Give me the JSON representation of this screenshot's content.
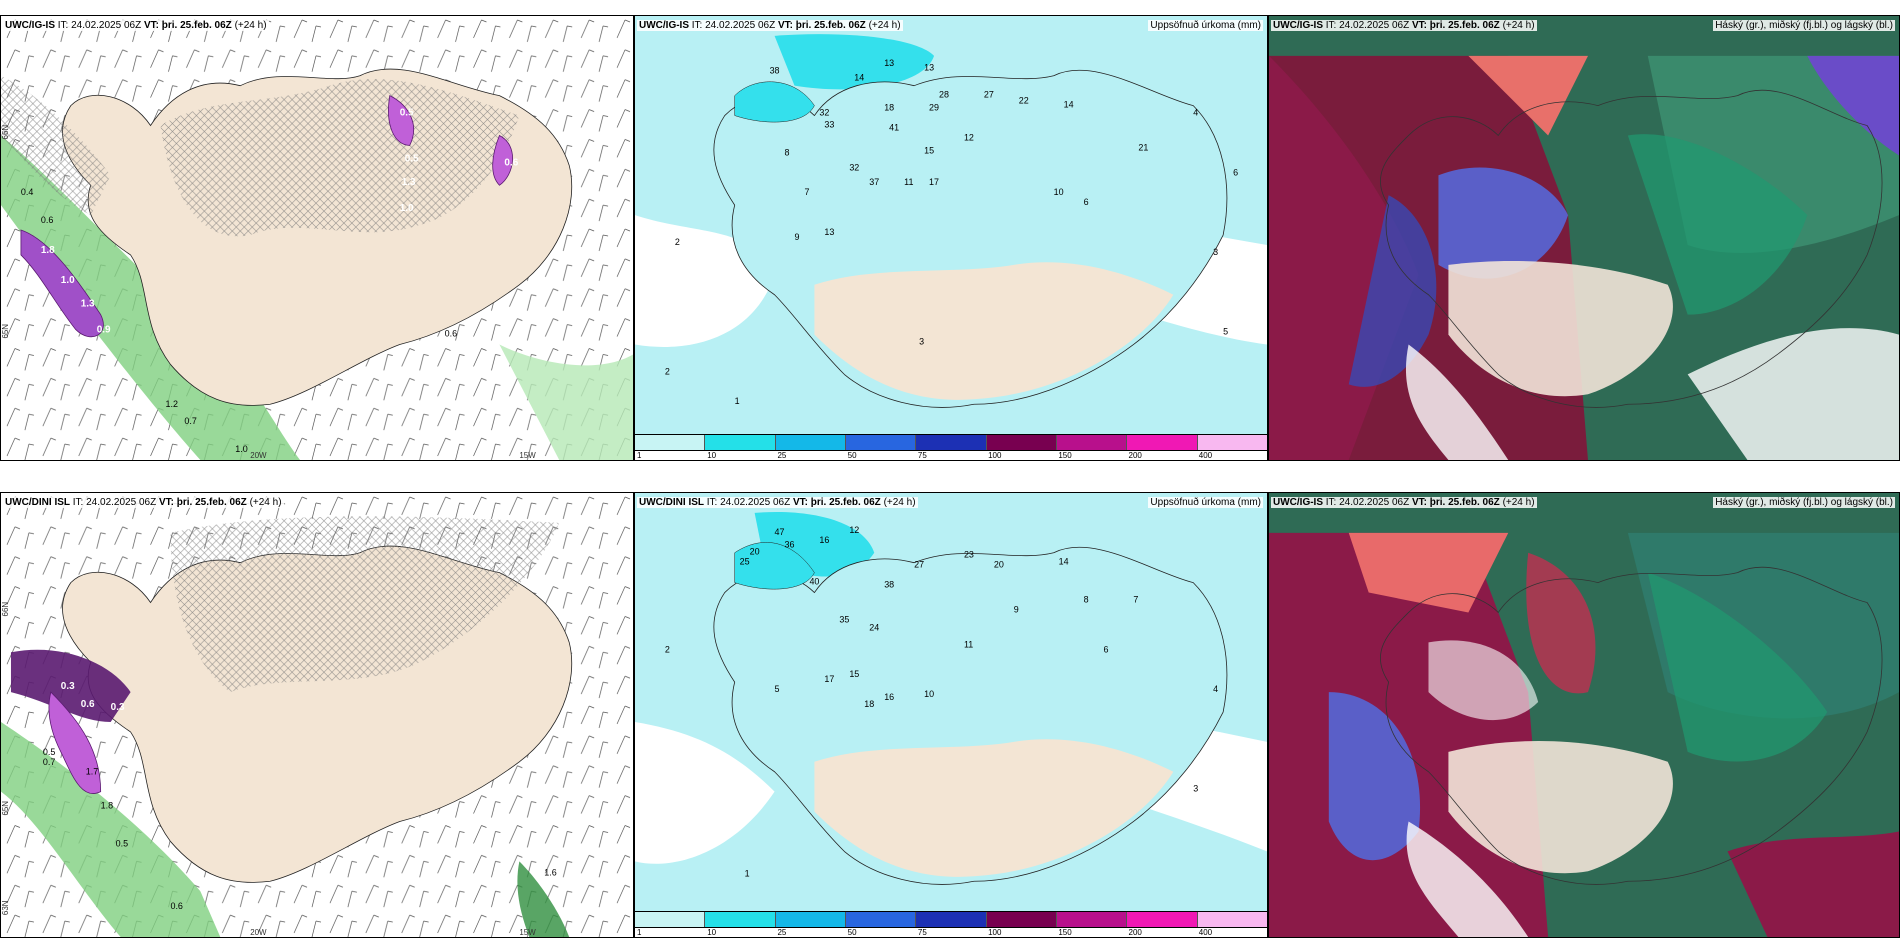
{
  "rows": [
    {
      "model": "UWC/IG-IS",
      "it_text": "IT: 24.02.2025 06Z",
      "vt_label": "VT: þri. 25.feb. 06Z",
      "lead": "(+24 h)",
      "map_labels": [
        "0.4",
        "0.6",
        "1.8",
        "1.0",
        "1.3",
        "0.9",
        "1.2",
        "0.7",
        "1.0",
        "0.6",
        "0.5",
        "0.5",
        "1.3",
        "1.0",
        "0.6"
      ],
      "precip_values": [
        "13",
        "13",
        "14",
        "18",
        "38",
        "32",
        "33",
        "41",
        "29",
        "28",
        "27",
        "22",
        "14",
        "21",
        "37",
        "32",
        "11",
        "17",
        "15",
        "12",
        "13",
        "10",
        "6",
        "3",
        "2",
        "5",
        "8",
        "9",
        "4",
        "7",
        "6",
        "3",
        "2",
        "1"
      ]
    },
    {
      "model": "UWC/DINI ISL",
      "it_text": "IT: 24.02.2025 06Z",
      "vt_label": "VT: þri. 25.feb. 06Z",
      "lead": "(+24 h)",
      "map_labels": [
        "0.3",
        "0.6",
        "0.3",
        "0.7",
        "0.5",
        "1.7",
        "1.8",
        "0.6",
        "0.5",
        "1.6"
      ],
      "precip_values": [
        "12",
        "16",
        "47",
        "36",
        "25",
        "20",
        "40",
        "38",
        "27",
        "23",
        "20",
        "14",
        "35",
        "24",
        "15",
        "17",
        "18",
        "16",
        "10",
        "11",
        "9",
        "8",
        "7",
        "6",
        "5",
        "4",
        "3",
        "2",
        "1"
      ]
    }
  ],
  "axes": {
    "lat_top": "66N",
    "lat_mid": "65N",
    "lat_bot": "63N",
    "lon_left": "20W",
    "lon_right": "15W"
  },
  "precip_title": "Uppsöfnuð úrkoma (mm)",
  "cloud_title": "Háský (gr.), miðský (fj.bl.) og lágský (bl.)",
  "legend": {
    "ticks": [
      "1",
      "10",
      "25",
      "50",
      "75",
      "100",
      "150",
      "200",
      "400"
    ],
    "colors": [
      "#c8f4f4",
      "#24e0e8",
      "#14b8e8",
      "#2866e0",
      "#1c30b4",
      "#780050",
      "#b8108c",
      "#f018b4",
      "#f8b8f0"
    ]
  },
  "colors": {
    "land": "#f3e5d4",
    "sea": "#ffffff",
    "precip_light": "#b8f0f4",
    "precip_mid": "#34e0ec",
    "purple": "#a050c8",
    "green": "#60c860"
  }
}
